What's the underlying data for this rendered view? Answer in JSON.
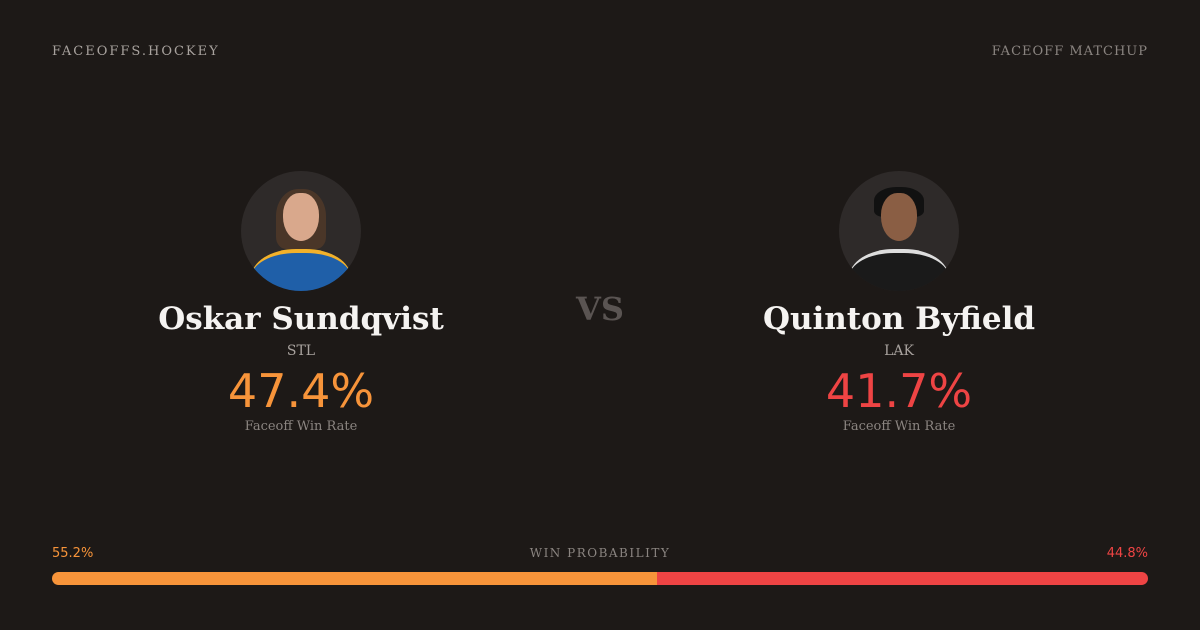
{
  "header": {
    "brand": "FACEOFFS.HOCKEY",
    "tag": "FACEOFF MATCHUP"
  },
  "colors": {
    "player1": "#f7943a",
    "player2": "#ee4444",
    "background": "#1d1917"
  },
  "players": [
    {
      "name": "Oskar Sundqvist",
      "team": "STL",
      "rate": "47.4%",
      "rate_label": "Faceoff Win Rate",
      "photo": "player-headshot",
      "jersey": "#1f5fa8"
    },
    {
      "name": "Quinton Byfield",
      "team": "LAK",
      "rate": "41.7%",
      "rate_label": "Faceoff Win Rate",
      "photo": "player-headshot",
      "jersey": "#1a1a1a"
    }
  ],
  "vs": "VS",
  "win_probability": {
    "label": "WIN PROBABILITY",
    "player1": "55.2%",
    "player2": "44.8%",
    "player1_value": 55.2,
    "player2_value": 44.8
  }
}
